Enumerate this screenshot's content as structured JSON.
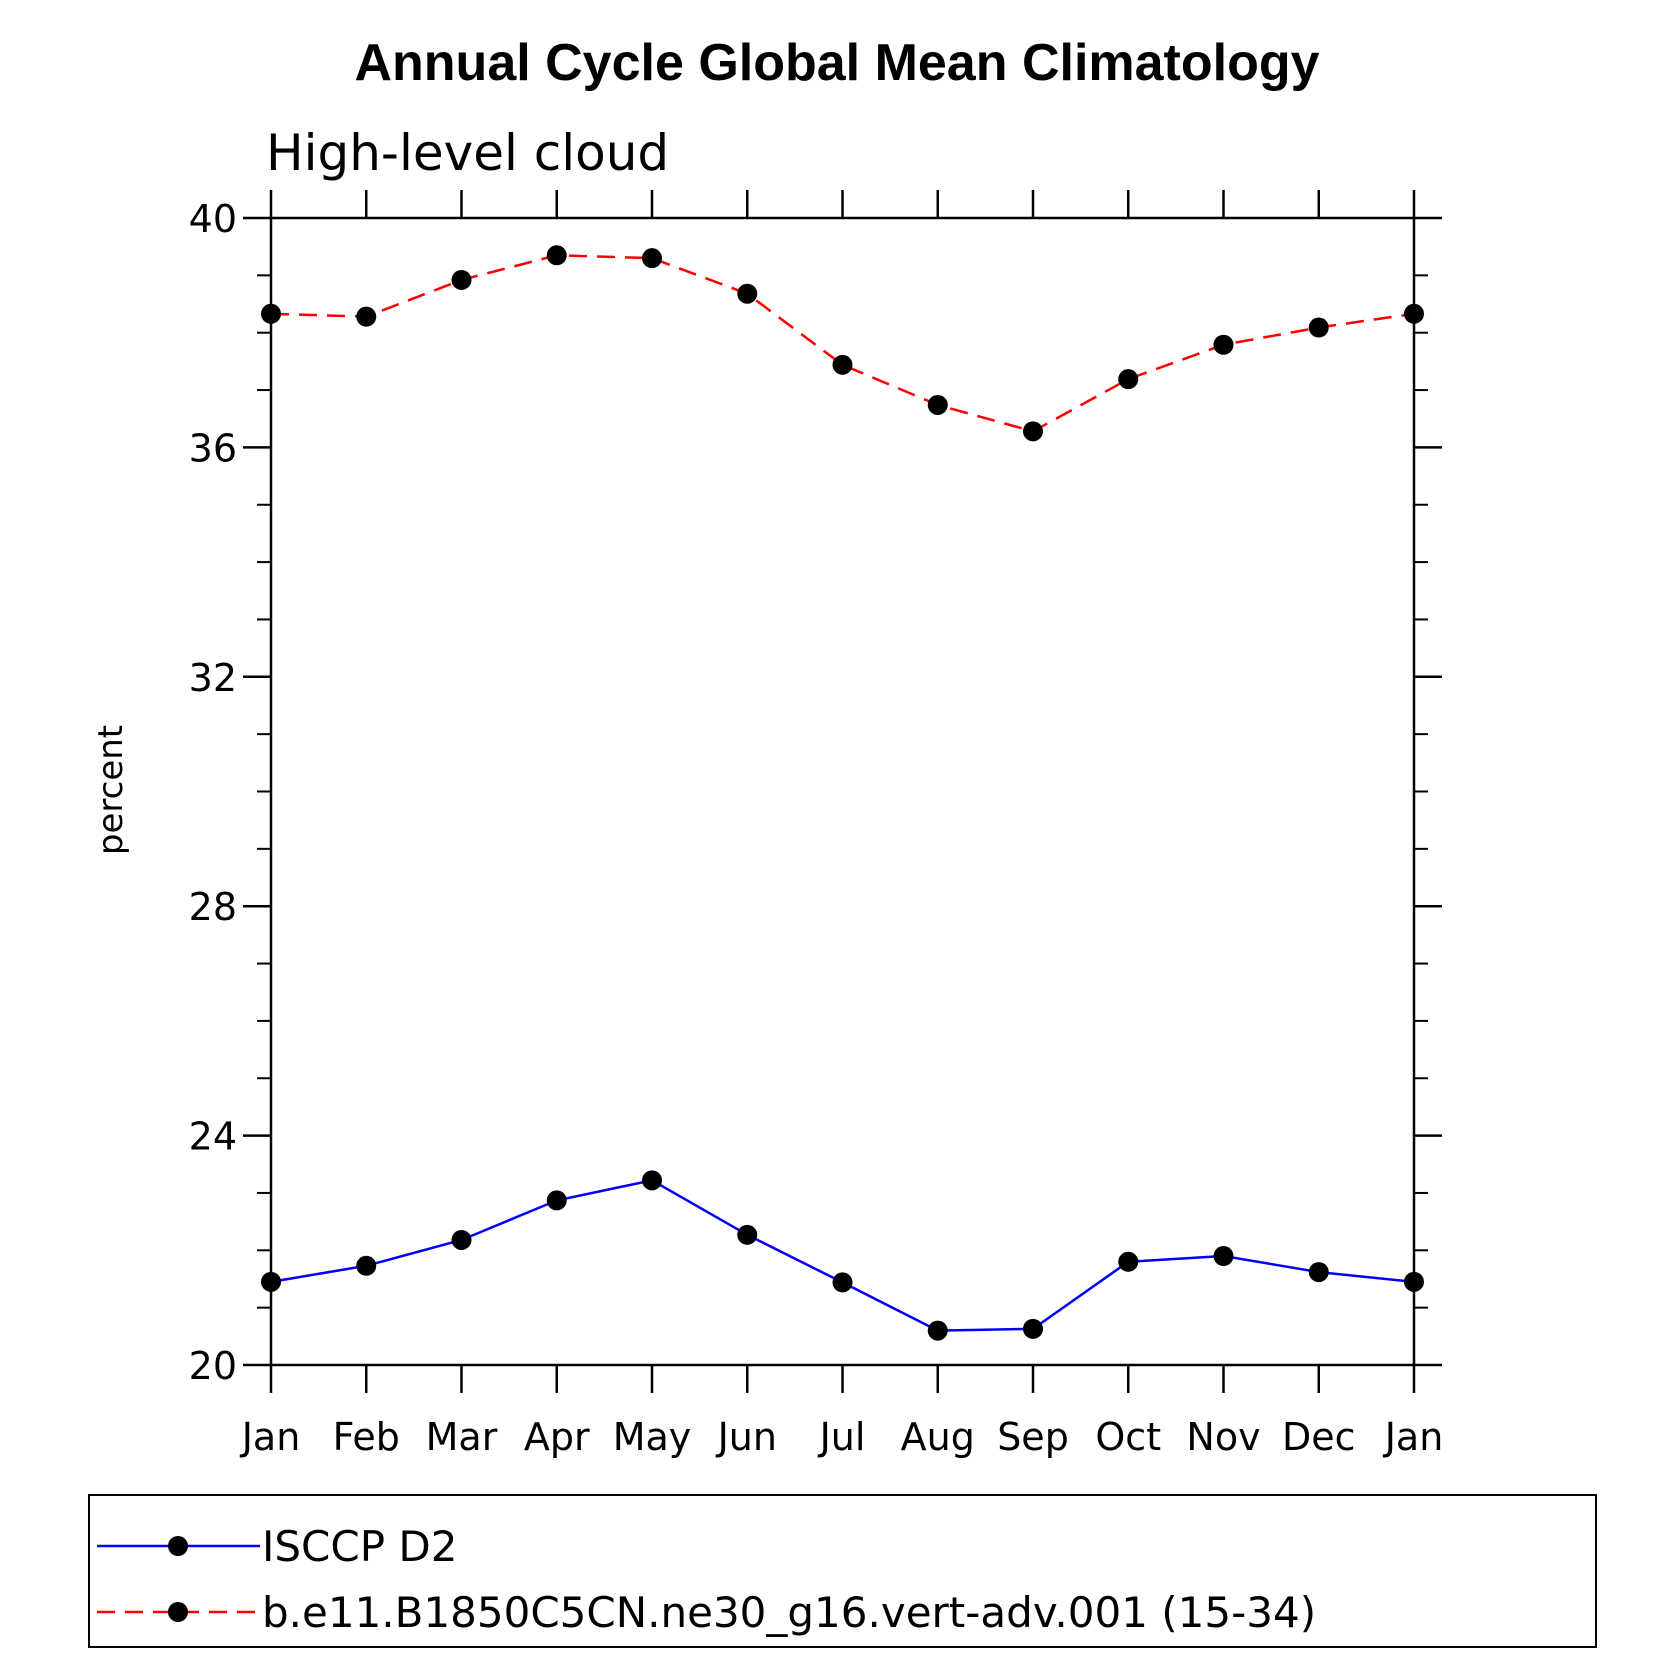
{
  "chart_data": {
    "type": "line",
    "title": "Annual Cycle Global Mean Climatology",
    "subtitle": "High-level cloud",
    "xlabel": "",
    "ylabel": "percent",
    "categories": [
      "Jan",
      "Feb",
      "Mar",
      "Apr",
      "May",
      "Jun",
      "Jul",
      "Aug",
      "Sep",
      "Oct",
      "Nov",
      "Dec",
      "Jan"
    ],
    "ylim": [
      20,
      40
    ],
    "yticks": [
      20,
      24,
      28,
      32,
      36,
      40
    ],
    "grid": false,
    "legend_placement": "bottom",
    "series": [
      {
        "name": "ISCCP D2",
        "color": "#0000ff",
        "line_style": "solid",
        "marker": "filled-circle",
        "values": [
          21.45,
          21.73,
          22.18,
          22.87,
          23.22,
          22.27,
          21.44,
          20.6,
          20.63,
          21.8,
          21.9,
          21.62,
          21.45
        ]
      },
      {
        "name": "b.e11.B1850C5CN.ne30_g16.vert-adv.001 (15-34)",
        "color": "#ff0000",
        "line_style": "dashed",
        "marker": "filled-circle",
        "values": [
          38.33,
          38.28,
          38.92,
          39.35,
          39.3,
          38.68,
          37.44,
          36.74,
          36.28,
          37.19,
          37.79,
          38.09,
          38.33
        ]
      }
    ]
  }
}
